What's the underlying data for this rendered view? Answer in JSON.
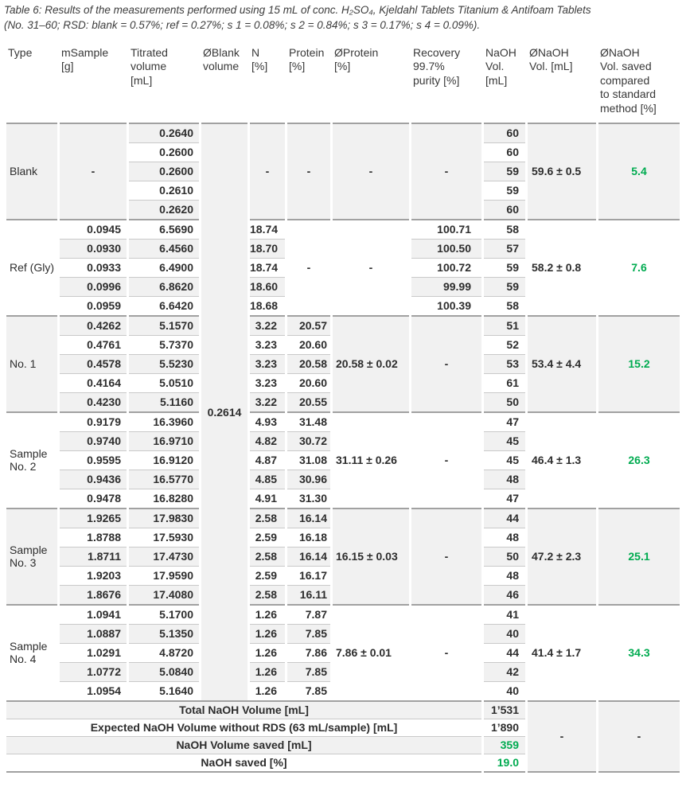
{
  "caption": {
    "line1": "Table 6: Results of the measurements performed using 15 mL of conc. H₂SO₄, Kjeldahl Tablets Titanium & Antifoam Tablets",
    "line2": "(No. 31–60; RSD: blank = 0.57%; ref = 0.27%; s 1 = 0.08%; s 2 = 0.84%; s 3 = 0.17%; s 4 = 0.09%)."
  },
  "colors": {
    "green": "#00AB50",
    "stripe": "#f1f1f1",
    "divider": "#a1a1a1"
  },
  "columns": [
    "Type",
    "mSample\n[g]",
    "Titrated\nvolume\n[mL]",
    "ØBlank\nvolume",
    "N\n[%]",
    "Protein\n[%]",
    "ØProtein\n[%]",
    "Recovery\n99.7%\npurity [%]",
    "NaOH\nVol.\n[mL]",
    "ØNaOH\nVol. [mL]",
    "ØNaOH\nVol. saved\ncompared\nto standard\nmethod [%]"
  ],
  "blank_volume": "0.2614",
  "sections": [
    {
      "label": "Blank",
      "cells": {
        "msample": {
          "m": "-"
        },
        "titrated": {
          "v": [
            "0.2640",
            "0.2600",
            "0.2600",
            "0.2610",
            "0.2620"
          ]
        },
        "n": {
          "m": "-"
        },
        "protein": {
          "m": "-"
        },
        "oprotein": {
          "m": "-"
        },
        "recovery": {
          "m": "-"
        },
        "naoh": {
          "v": [
            "60",
            "60",
            "59",
            "59",
            "60"
          ]
        },
        "onaoh": {
          "m": "59.6 ± 0.5"
        },
        "saved": {
          "m": "5.4"
        }
      }
    },
    {
      "label": "Ref (Gly)",
      "cells": {
        "msample": {
          "v": [
            "0.0945",
            "0.0930",
            "0.0933",
            "0.0996",
            "0.0959"
          ]
        },
        "titrated": {
          "v": [
            "6.5690",
            "6.4560",
            "6.4900",
            "6.8620",
            "6.6420"
          ]
        },
        "n": {
          "v": [
            "18.74",
            "18.70",
            "18.74",
            "18.60",
            "18.68"
          ]
        },
        "protein": {
          "m": "-"
        },
        "oprotein": {
          "m": "-"
        },
        "recovery": {
          "v": [
            "100.71",
            "100.50",
            "100.72",
            "99.99",
            "100.39"
          ]
        },
        "naoh": {
          "v": [
            "58",
            "57",
            "59",
            "59",
            "58"
          ]
        },
        "onaoh": {
          "m": "58.2 ± 0.8"
        },
        "saved": {
          "m": "7.6"
        }
      }
    },
    {
      "label": "No. 1",
      "cells": {
        "msample": {
          "v": [
            "0.4262",
            "0.4761",
            "0.4578",
            "0.4164",
            "0.4230"
          ]
        },
        "titrated": {
          "v": [
            "5.1570",
            "5.7370",
            "5.5230",
            "5.0510",
            "5.1160"
          ]
        },
        "n": {
          "v": [
            "3.22",
            "3.23",
            "3.23",
            "3.23",
            "3.22"
          ]
        },
        "protein": {
          "v": [
            "20.57",
            "20.60",
            "20.58",
            "20.60",
            "20.55"
          ]
        },
        "oprotein": {
          "m": "20.58 ± 0.02"
        },
        "recovery": {
          "m": "-"
        },
        "naoh": {
          "v": [
            "51",
            "52",
            "53",
            "61",
            "50"
          ]
        },
        "onaoh": {
          "m": "53.4 ± 4.4"
        },
        "saved": {
          "m": "15.2"
        }
      }
    },
    {
      "label": "Sample No. 2",
      "cells": {
        "msample": {
          "v": [
            "0.9179",
            "0.9740",
            "0.9595",
            "0.9436",
            "0.9478"
          ]
        },
        "titrated": {
          "v": [
            "16.3960",
            "16.9710",
            "16.9120",
            "16.5770",
            "16.8280"
          ]
        },
        "n": {
          "v": [
            "4.93",
            "4.82",
            "4.87",
            "4.85",
            "4.91"
          ]
        },
        "protein": {
          "v": [
            "31.48",
            "30.72",
            "31.08",
            "30.96",
            "31.30"
          ]
        },
        "oprotein": {
          "m": "31.11 ± 0.26"
        },
        "recovery": {
          "m": "-"
        },
        "naoh": {
          "v": [
            "47",
            "45",
            "45",
            "48",
            "47"
          ]
        },
        "onaoh": {
          "m": "46.4 ± 1.3"
        },
        "saved": {
          "m": "26.3"
        }
      }
    },
    {
      "label": "Sample No. 3",
      "cells": {
        "msample": {
          "v": [
            "1.9265",
            "1.8788",
            "1.8711",
            "1.9203",
            "1.8676"
          ]
        },
        "titrated": {
          "v": [
            "17.9830",
            "17.5930",
            "17.4730",
            "17.9590",
            "17.4080"
          ]
        },
        "n": {
          "v": [
            "2.58",
            "2.59",
            "2.58",
            "2.59",
            "2.58"
          ]
        },
        "protein": {
          "v": [
            "16.14",
            "16.18",
            "16.14",
            "16.17",
            "16.11"
          ]
        },
        "oprotein": {
          "m": "16.15 ± 0.03"
        },
        "recovery": {
          "m": "-"
        },
        "naoh": {
          "v": [
            "44",
            "48",
            "50",
            "48",
            "46"
          ]
        },
        "onaoh": {
          "m": "47.2 ± 2.3"
        },
        "saved": {
          "m": "25.1"
        }
      }
    },
    {
      "label": "Sample No. 4",
      "cells": {
        "msample": {
          "v": [
            "1.0941",
            "1.0887",
            "1.0291",
            "1.0772",
            "1.0954"
          ]
        },
        "titrated": {
          "v": [
            "5.1700",
            "5.1350",
            "4.8720",
            "5.0840",
            "5.1640"
          ]
        },
        "n": {
          "v": [
            "1.26",
            "1.26",
            "1.26",
            "1.26",
            "1.26"
          ]
        },
        "protein": {
          "v": [
            "7.87",
            "7.85",
            "7.86",
            "7.85",
            "7.85"
          ]
        },
        "oprotein": {
          "m": "7.86 ± 0.01"
        },
        "recovery": {
          "m": "-"
        },
        "naoh": {
          "v": [
            "41",
            "40",
            "44",
            "42",
            "40"
          ]
        },
        "onaoh": {
          "m": "41.4 ± 1.7"
        },
        "saved": {
          "m": "34.3"
        }
      }
    }
  ],
  "footer": {
    "rows": [
      {
        "label": "Total NaOH Volume [mL]",
        "value": "1’531",
        "green": false
      },
      {
        "label": "Expected NaOH Volume without RDS (63 mL/sample) [mL]",
        "value": "1’890",
        "green": false
      },
      {
        "label": "NaOH Volume saved [mL]",
        "value": "359",
        "green": true
      },
      {
        "label": "NaOH saved [%]",
        "value": "19.0",
        "green": true
      }
    ],
    "onaoh_dash": "-",
    "saved_dash": "-"
  }
}
